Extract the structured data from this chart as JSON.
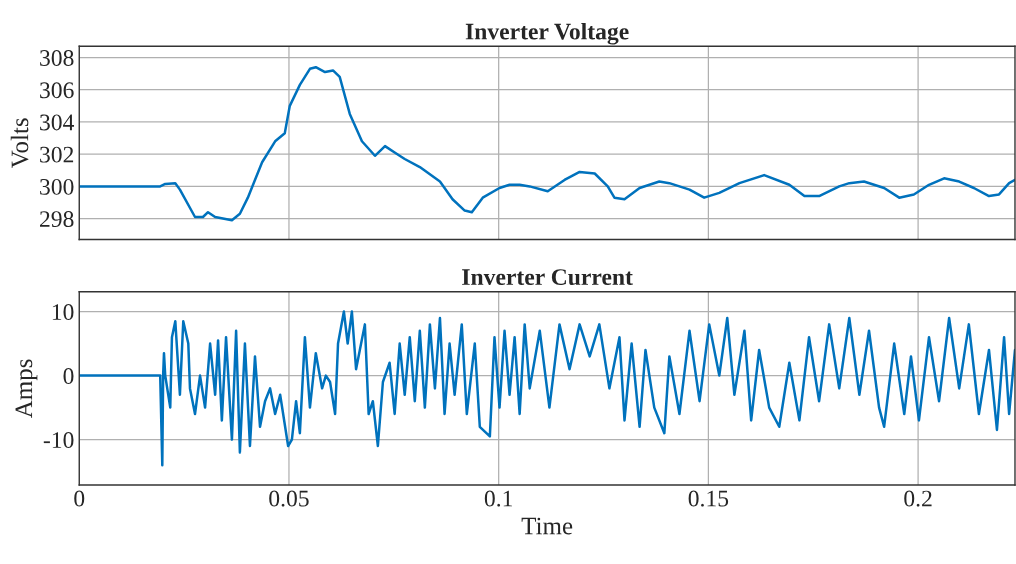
{
  "chart_data": [
    {
      "type": "line",
      "title": "Inverter Voltage",
      "ylabel": "Volts",
      "xlim": [
        0,
        0.2231
      ],
      "ylim": [
        296.7,
        308.7
      ],
      "xticks": [
        0,
        0.05,
        0.1,
        0.15,
        0.2
      ],
      "yticks": [
        298,
        300,
        302,
        304,
        306,
        308
      ],
      "grid": true,
      "tick_labels": "y",
      "series": [
        {
          "color": "#0072bd",
          "x": [
            0,
            0.0193,
            0.0205,
            0.0229,
            0.024,
            0.0276,
            0.0295,
            0.0307,
            0.0324,
            0.0364,
            0.0383,
            0.0402,
            0.0436,
            0.0467,
            0.049,
            0.0502,
            0.0526,
            0.055,
            0.0564,
            0.0586,
            0.0605,
            0.0621,
            0.0645,
            0.0674,
            0.0705,
            0.0729,
            0.0752,
            0.0776,
            0.0812,
            0.086,
            0.089,
            0.0919,
            0.0936,
            0.0962,
            0.1002,
            0.1026,
            0.105,
            0.1074,
            0.1117,
            0.1157,
            0.1193,
            0.1229,
            0.126,
            0.1276,
            0.13,
            0.1336,
            0.1383,
            0.1407,
            0.1455,
            0.149,
            0.1526,
            0.1574,
            0.1633,
            0.1693,
            0.1729,
            0.1764,
            0.1812,
            0.1836,
            0.1871,
            0.1919,
            0.1955,
            0.199,
            0.2026,
            0.2062,
            0.2098,
            0.2133,
            0.2169,
            0.2193,
            0.2217,
            0.2231
          ],
          "values": [
            300,
            300,
            300.15,
            300.2,
            299.8,
            298.1,
            298.1,
            298.4,
            298.1,
            297.9,
            298.3,
            299.3,
            301.5,
            302.8,
            303.3,
            305,
            306.3,
            307.3,
            307.4,
            307.1,
            307.2,
            306.8,
            304.5,
            302.8,
            301.9,
            302.5,
            302.1,
            301.7,
            301.2,
            300.3,
            299.2,
            298.5,
            298.4,
            299.3,
            299.9,
            300.1,
            300.1,
            300.0,
            299.7,
            300.4,
            300.9,
            300.8,
            300.0,
            299.3,
            299.2,
            299.9,
            300.3,
            300.2,
            299.8,
            299.3,
            299.6,
            300.2,
            300.7,
            300.1,
            299.4,
            299.4,
            300.0,
            300.2,
            300.3,
            299.9,
            299.3,
            299.5,
            300.1,
            300.5,
            300.3,
            299.9,
            299.4,
            299.5,
            300.2,
            300.4
          ]
        }
      ]
    },
    {
      "type": "line",
      "title": "Inverter Current",
      "xlabel": "Time",
      "ylabel": "Amps",
      "xlim": [
        0,
        0.2231
      ],
      "ylim": [
        -17.1,
        13.1
      ],
      "xticks": [
        0,
        0.05,
        0.1,
        0.15,
        0.2
      ],
      "yticks": [
        -10,
        0,
        10
      ],
      "grid": true,
      "series": [
        {
          "color": "#0072bd",
          "x": [
            0,
            0.0193,
            0.0198,
            0.02,
            0.0202,
            0.0205,
            0.0217,
            0.0221,
            0.0229,
            0.024,
            0.0248,
            0.026,
            0.0264,
            0.0276,
            0.0288,
            0.03,
            0.0312,
            0.0324,
            0.0331,
            0.034,
            0.035,
            0.0364,
            0.0374,
            0.0383,
            0.0395,
            0.0407,
            0.0419,
            0.0431,
            0.0443,
            0.0455,
            0.0467,
            0.0479,
            0.0498,
            0.0507,
            0.0517,
            0.0526,
            0.0538,
            0.055,
            0.0564,
            0.0579,
            0.0588,
            0.0598,
            0.061,
            0.0617,
            0.0631,
            0.064,
            0.065,
            0.066,
            0.0669,
            0.0681,
            0.069,
            0.07,
            0.0712,
            0.0724,
            0.074,
            0.0752,
            0.0764,
            0.0776,
            0.0788,
            0.08,
            0.0812,
            0.0824,
            0.0836,
            0.0848,
            0.086,
            0.0871,
            0.0883,
            0.0895,
            0.0912,
            0.0924,
            0.0943,
            0.0955,
            0.0979,
            0.099,
            0.1002,
            0.1014,
            0.1026,
            0.1038,
            0.105,
            0.1062,
            0.1074,
            0.1098,
            0.1121,
            0.1145,
            0.1169,
            0.1193,
            0.1217,
            0.124,
            0.1264,
            0.1288,
            0.13,
            0.1317,
            0.1336,
            0.135,
            0.1371,
            0.1395,
            0.1407,
            0.1431,
            0.1455,
            0.1479,
            0.1502,
            0.1526,
            0.1545,
            0.1562,
            0.1586,
            0.1602,
            0.1621,
            0.1645,
            0.1669,
            0.1693,
            0.1717,
            0.174,
            0.1764,
            0.1788,
            0.1812,
            0.1836,
            0.186,
            0.1883,
            0.1907,
            0.1919,
            0.1943,
            0.1967,
            0.1983,
            0.2002,
            0.2026,
            0.205,
            0.2074,
            0.2098,
            0.2121,
            0.2145,
            0.2169,
            0.2188,
            0.2205,
            0.2217,
            0.2231
          ],
          "values": [
            0,
            0,
            -14,
            0,
            3.5,
            0,
            -5,
            6,
            8.5,
            -3,
            8.5,
            5,
            -2,
            -6,
            0,
            -5,
            5,
            -3,
            5.5,
            -7,
            6,
            -10,
            7,
            -12,
            5,
            -11,
            3,
            -8,
            -4,
            -2,
            -6,
            -3,
            -11,
            -10,
            -4,
            -9,
            6,
            -5,
            3.5,
            -2,
            0,
            -1,
            -6,
            5,
            10,
            5,
            10,
            1,
            4,
            8,
            -6,
            -4,
            -11,
            -1,
            2,
            -6,
            5,
            -3,
            6,
            -4,
            7,
            -5,
            8,
            -2,
            9,
            -6,
            5,
            -3,
            8,
            -6,
            5,
            -8,
            -9.5,
            6,
            -5,
            7,
            -3,
            6,
            -6,
            8,
            -2,
            7,
            -5,
            8,
            1,
            8,
            3,
            8,
            -2,
            6,
            -7,
            5,
            -8,
            4,
            -5,
            -9,
            3,
            -6,
            7,
            -4,
            8,
            0,
            9,
            -3,
            7,
            -7,
            4,
            -5,
            -8,
            2,
            -7,
            6,
            -4,
            8,
            -2,
            9,
            -3,
            7,
            -5,
            -8,
            5,
            -6,
            3,
            -7,
            6,
            -4,
            9,
            -2,
            8,
            -6,
            4,
            -8.5,
            6,
            -6,
            4
          ]
        }
      ]
    }
  ]
}
